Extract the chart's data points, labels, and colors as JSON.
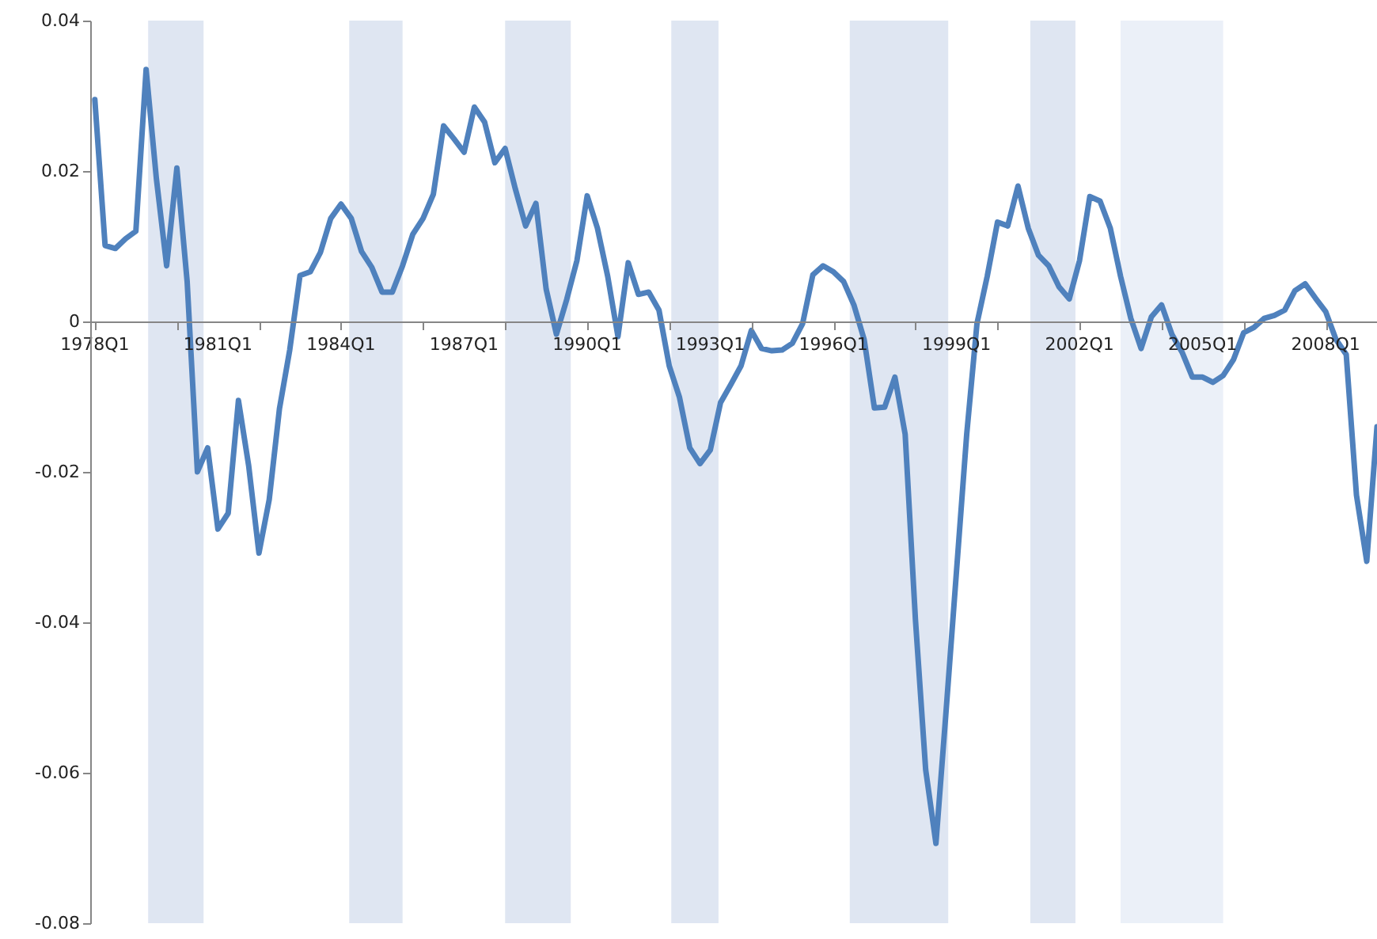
{
  "chart_data": {
    "type": "line",
    "categories": [
      "1978Q1",
      null,
      null,
      null,
      null,
      null,
      null,
      null,
      null,
      null,
      null,
      null,
      "1981Q1",
      null,
      null,
      null,
      null,
      null,
      null,
      null,
      null,
      null,
      null,
      null,
      "1984Q1",
      null,
      null,
      null,
      null,
      null,
      null,
      null,
      null,
      null,
      null,
      null,
      "1987Q1",
      null,
      null,
      null,
      null,
      null,
      null,
      null,
      null,
      null,
      null,
      null,
      "1990Q1",
      null,
      null,
      null,
      null,
      null,
      null,
      null,
      null,
      null,
      null,
      null,
      "1993Q1",
      null,
      null,
      null,
      null,
      null,
      null,
      null,
      null,
      null,
      null,
      null,
      "1996Q1",
      null,
      null,
      null,
      null,
      null,
      null,
      null,
      null,
      null,
      null,
      null,
      "1999Q1",
      null,
      null,
      null,
      null,
      null,
      null,
      null,
      null,
      null,
      null,
      null,
      "2002Q1",
      null,
      null,
      null,
      null,
      null,
      null,
      null,
      null,
      null,
      null,
      null,
      "2005Q1",
      null,
      null,
      null,
      null,
      null,
      null,
      null,
      null,
      null,
      null,
      null,
      "2008Q1",
      null,
      null,
      null,
      null,
      null
    ],
    "series": [
      {
        "color": "#4f81bd",
        "values": [
          0.0295,
          0.0101,
          0.0097,
          0.011,
          0.012,
          0.0335,
          0.019,
          0.0074,
          0.0204,
          0.0053,
          -0.02,
          -0.0168,
          -0.0276,
          -0.0255,
          -0.0105,
          -0.0192,
          -0.0308,
          -0.0237,
          -0.0116,
          -0.0038,
          0.0061,
          0.0066,
          0.0092,
          0.0137,
          0.0156,
          0.0137,
          0.0093,
          0.0072,
          0.0039,
          0.0039,
          0.0074,
          0.0116,
          0.0137,
          0.0169,
          0.026,
          0.0243,
          0.0225,
          0.0285,
          0.0265,
          0.0211,
          0.023,
          0.0176,
          0.0127,
          0.0157,
          0.0043,
          -0.0017,
          0.0029,
          0.0081,
          0.0167,
          0.0124,
          0.006,
          -0.002,
          0.0078,
          0.0036,
          0.0039,
          0.0015,
          -0.0059,
          -0.0101,
          -0.0168,
          -0.0189,
          -0.0171,
          -0.0108,
          -0.0084,
          -0.0059,
          -0.0012,
          -0.0036,
          -0.0039,
          -0.0038,
          -0.0029,
          -0.0003,
          0.0062,
          0.0074,
          0.0066,
          0.0053,
          0.0022,
          -0.0024,
          -0.0115,
          -0.0114,
          -0.0074,
          -0.015,
          -0.0396,
          -0.0596,
          -0.0694,
          -0.0516,
          -0.0333,
          -0.015,
          -0.0003,
          0.006,
          0.0132,
          0.0127,
          0.018,
          0.0124,
          0.0088,
          0.0074,
          0.0046,
          0.003,
          0.0081,
          0.0166,
          0.016,
          0.0124,
          0.006,
          0.0004,
          -0.0036,
          0.0006,
          0.0022,
          -0.0017,
          -0.0041,
          -0.0074,
          -0.0074,
          -0.0081,
          -0.0072,
          -0.0051,
          -0.0015,
          -0.0008,
          0.0004,
          0.0008,
          0.0015,
          0.0041,
          0.005,
          0.0031,
          0.0013,
          -0.0024,
          -0.0044,
          -0.0231,
          -0.0319,
          -0.014
        ]
      }
    ],
    "ylim": [
      -0.08,
      0.04
    ],
    "yticks": [
      -0.08,
      -0.06,
      -0.04,
      -0.02,
      0,
      0.02,
      0.04
    ],
    "marker": "none"
  }
}
